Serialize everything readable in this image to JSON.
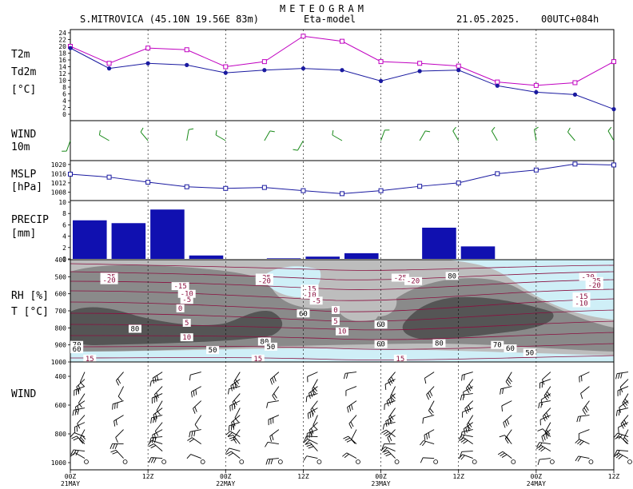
{
  "header": {
    "title": "METEOGRAM",
    "station": "S.MITROVICA (45.10N 19.56E  83m)",
    "model": "Eta-model",
    "date": "21.05.2025.",
    "run": "00UTC+084h"
  },
  "colors": {
    "t2m": "#c000c0",
    "td2m": "#1a1aa0",
    "wind10": "#1a8a1a",
    "mslp": "#1a1aa0",
    "precip": "#1010b0",
    "rh_light": "#cfeff7",
    "rh_mid": "#bdbdbd",
    "rh_dark": "#8a8a8a",
    "rh_darker": "#555555",
    "temp_contour": "#8a1040"
  },
  "time_axis": {
    "ticks": [
      "00Z",
      "12Z",
      "00Z",
      "12Z",
      "00Z",
      "12Z",
      "00Z",
      "12Z"
    ],
    "dates": [
      {
        "label": "21MAY",
        "index": 0
      },
      {
        "label": "22MAY",
        "index": 2
      },
      {
        "label": "23MAY",
        "index": 4
      },
      {
        "label": "24MAY",
        "index": 6
      }
    ],
    "hours": [
      0,
      6,
      12,
      18,
      24,
      30,
      36,
      42,
      48,
      54,
      60,
      66,
      72,
      78,
      84
    ]
  },
  "chart_data": [
    {
      "type": "line",
      "panel": "temperature",
      "label_series1": "T2m",
      "label_series2": "Td2m",
      "unit": "[°C]",
      "x": [
        0,
        6,
        12,
        18,
        24,
        30,
        36,
        42,
        48,
        54,
        60,
        66,
        72,
        78,
        84
      ],
      "series": [
        {
          "name": "T2m",
          "values": [
            20,
            15,
            19.5,
            19,
            14,
            15.5,
            23,
            21.5,
            15.5,
            15,
            14.2,
            9.5,
            8.5,
            9.3,
            15.5
          ]
        },
        {
          "name": "Td2m",
          "values": [
            19.5,
            13.5,
            15,
            14.5,
            12.2,
            13,
            13.5,
            13,
            9.8,
            12.7,
            13,
            8.4,
            6.5,
            5.8,
            1.5
          ]
        }
      ],
      "ylim": [
        0,
        24
      ],
      "yticks": [
        0,
        2,
        4,
        6,
        8,
        10,
        12,
        14,
        16,
        18,
        20,
        22,
        24
      ]
    },
    {
      "type": "barbs",
      "panel": "wind10m",
      "label1": "WIND",
      "label2": "10m",
      "direction_deg": [
        200,
        300,
        320,
        10,
        300,
        30,
        210,
        300,
        20,
        30,
        330,
        330,
        350,
        320,
        330
      ]
    },
    {
      "type": "line",
      "panel": "mslp",
      "label1": "MSLP",
      "label2": "[hPa]",
      "x": [
        0,
        6,
        12,
        18,
        24,
        30,
        36,
        42,
        48,
        54,
        60,
        66,
        72,
        78,
        84
      ],
      "values": [
        1015.8,
        1014.5,
        1012.3,
        1010.3,
        1009.6,
        1010,
        1008.6,
        1007.3,
        1008.6,
        1010.5,
        1012,
        1016,
        1017.6,
        1020.2,
        1019.8
      ],
      "ylim": [
        1005,
        1021
      ],
      "yticks": [
        1008,
        1012,
        1016,
        1020
      ]
    },
    {
      "type": "bar",
      "panel": "precip",
      "label1": "PRECIP",
      "label2": "[mm]",
      "x": [
        6,
        12,
        18,
        24,
        30,
        36,
        42,
        48,
        54,
        60,
        66,
        72,
        78,
        84
      ],
      "values": [
        6.8,
        6.3,
        8.7,
        0.6,
        0,
        0.1,
        0.4,
        1,
        0,
        5.5,
        2.2,
        0,
        0,
        0
      ],
      "ylim": [
        0,
        10
      ],
      "yticks": [
        0,
        2,
        4,
        6,
        8,
        10
      ]
    },
    {
      "type": "heatmap",
      "panel": "rh_temp",
      "label1": "RH [%]",
      "label2": "T [°C]",
      "levels": [
        400,
        500,
        600,
        700,
        800,
        900,
        1000
      ],
      "contour_labels": [
        {
          "t": "-25",
          "h": 6,
          "p": 505
        },
        {
          "t": "-20",
          "h": 6,
          "p": 525
        },
        {
          "t": "-15",
          "h": 17,
          "p": 560
        },
        {
          "t": "-10",
          "h": 18,
          "p": 605
        },
        {
          "t": "-5",
          "h": 18,
          "p": 640
        },
        {
          "t": "0",
          "h": 17,
          "p": 690
        },
        {
          "t": "5",
          "h": 18,
          "p": 775
        },
        {
          "t": "10",
          "h": 18,
          "p": 860
        },
        {
          "t": "-25",
          "h": 30,
          "p": 510
        },
        {
          "t": "-20",
          "h": 30,
          "p": 530
        },
        {
          "t": "-15",
          "h": 37,
          "p": 575
        },
        {
          "t": "-10",
          "h": 37,
          "p": 610
        },
        {
          "t": "-5",
          "h": 38,
          "p": 645
        },
        {
          "t": "0",
          "h": 41,
          "p": 700
        },
        {
          "t": "5",
          "h": 41,
          "p": 765
        },
        {
          "t": "10",
          "h": 42,
          "p": 825
        },
        {
          "t": "-25",
          "h": 51,
          "p": 510
        },
        {
          "t": "-20",
          "h": 53,
          "p": 530
        },
        {
          "t": "-30",
          "h": 80,
          "p": 505
        },
        {
          "t": "-25",
          "h": 81,
          "p": 530
        },
        {
          "t": "-20",
          "h": 81,
          "p": 555
        },
        {
          "t": "-15",
          "h": 79,
          "p": 620
        },
        {
          "t": "-10",
          "h": 79,
          "p": 660
        },
        {
          "t": "80",
          "h": 10,
          "p": 810
        },
        {
          "t": "70",
          "h": 1,
          "p": 905
        },
        {
          "t": "60",
          "h": 1,
          "p": 930
        },
        {
          "t": "50",
          "h": 22,
          "p": 935
        },
        {
          "t": "80",
          "h": 30,
          "p": 885
        },
        {
          "t": "50",
          "h": 31,
          "p": 915
        },
        {
          "t": "60",
          "h": 36,
          "p": 720
        },
        {
          "t": "60",
          "h": 48,
          "p": 785
        },
        {
          "t": "60",
          "h": 48,
          "p": 900
        },
        {
          "t": "80",
          "h": 59,
          "p": 500
        },
        {
          "t": "80",
          "h": 57,
          "p": 895
        },
        {
          "t": "70",
          "h": 66,
          "p": 905
        },
        {
          "t": "60",
          "h": 68,
          "p": 925
        },
        {
          "t": "50",
          "h": 71,
          "p": 950
        },
        {
          "t": "15",
          "h": 3,
          "p": 985
        },
        {
          "t": "15",
          "h": 29,
          "p": 985
        },
        {
          "t": "15",
          "h": 51,
          "p": 985
        }
      ]
    },
    {
      "type": "barbs",
      "panel": "wind_profile",
      "label1": "WIND",
      "levels": [
        400,
        600,
        800,
        1000
      ]
    }
  ]
}
